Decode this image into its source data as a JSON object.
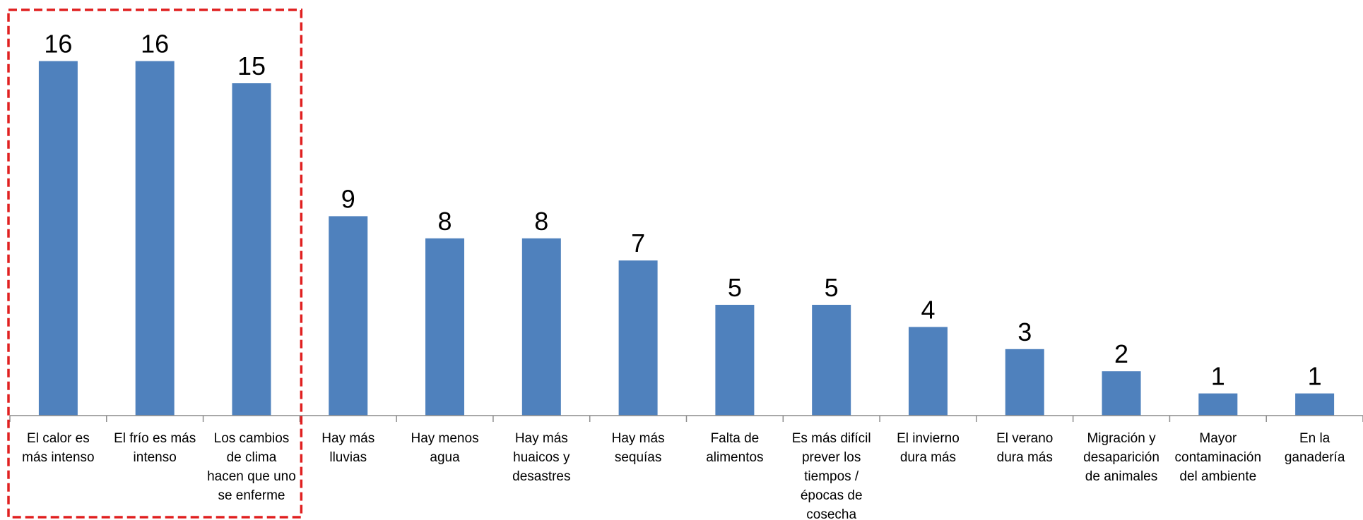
{
  "chart_data": {
    "type": "bar",
    "categories": [
      [
        "El calor es",
        "más intenso"
      ],
      [
        "El frío es más",
        "intenso"
      ],
      [
        "Los cambios",
        "de clima",
        "hacen que uno",
        "se enferme"
      ],
      [
        "Hay más",
        "lluvias"
      ],
      [
        "Hay menos",
        "agua"
      ],
      [
        "Hay más",
        "huaicos y",
        "desastres"
      ],
      [
        "Hay más",
        "sequías"
      ],
      [
        "Falta de",
        "alimentos"
      ],
      [
        "Es más difícil",
        "prever los",
        "tiempos /",
        "épocas de",
        "cosecha"
      ],
      [
        "El invierno",
        "dura más"
      ],
      [
        "El verano",
        "dura más"
      ],
      [
        "Migración y",
        "desaparición",
        "de animales"
      ],
      [
        "Mayor",
        "contaminación",
        "del ambiente"
      ],
      [
        "En la",
        "ganadería"
      ]
    ],
    "values": [
      16,
      16,
      15,
      9,
      8,
      8,
      7,
      5,
      5,
      4,
      3,
      2,
      1,
      1
    ],
    "data_labels": [
      "16",
      "16",
      "15",
      "9",
      "8",
      "8",
      "7",
      "5",
      "5",
      "4",
      "3",
      "2",
      "1",
      "1"
    ],
    "highlight": {
      "first_index": 0,
      "last_index": 2,
      "style": "dashed",
      "color": "#e02020"
    },
    "title": "",
    "xlabel": "",
    "ylabel": "",
    "ylim": [
      0,
      16.5
    ],
    "grid": false,
    "legend": "none",
    "colors": {
      "bar": "#4f81bd",
      "axis": "#8c8c8c",
      "text": "#000000"
    }
  }
}
